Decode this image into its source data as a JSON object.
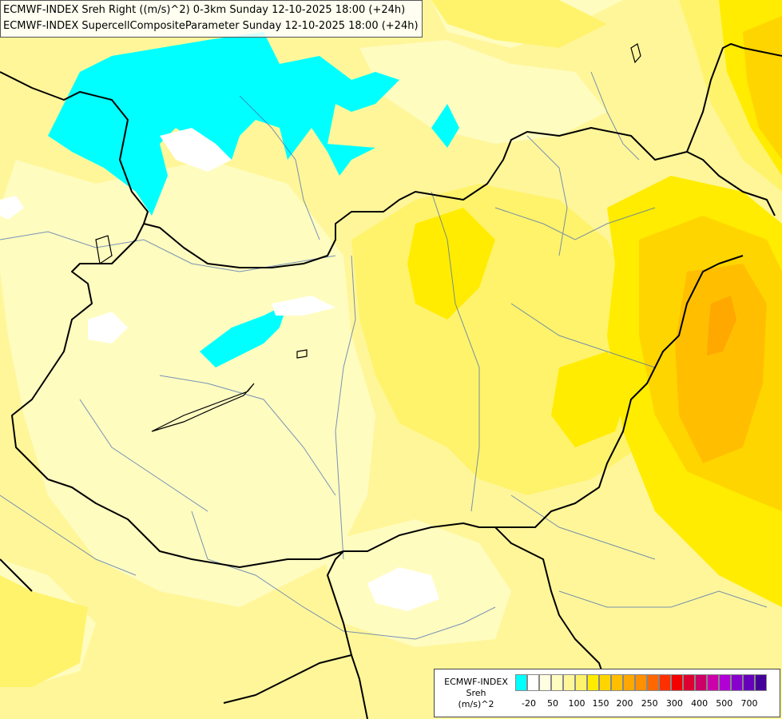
{
  "titles": {
    "line1": "ECMWF-INDEX Sreh Right ((m/s)^2) 0-3km Sunday 12-10-2025 18:00 (+24h)",
    "line2": "ECMWF-INDEX SupercellCompositeParameter Sunday 12-10-2025 18:00 (+24h)"
  },
  "legend": {
    "line1": "ECMWF-INDEX",
    "line2": "Sreh",
    "line3": "(m/s)^2",
    "colors": [
      "#00ffff",
      "#ffffff",
      "#fffee0",
      "#fffcc0",
      "#fff69a",
      "#fff36c",
      "#ffec00",
      "#ffd500",
      "#ffbf00",
      "#ffa800",
      "#ff9000",
      "#ff6800",
      "#ff3000",
      "#f50000",
      "#dd0030",
      "#cc0066",
      "#cc00aa",
      "#b000d5",
      "#8800cc",
      "#6600bb",
      "#440099",
      "#220077",
      "#000066"
    ],
    "ticks": [
      {
        "label": "-20",
        "i": 1
      },
      {
        "label": "50",
        "i": 3
      },
      {
        "label": "100",
        "i": 5
      },
      {
        "label": "150",
        "i": 7
      },
      {
        "label": "200",
        "i": 9
      },
      {
        "label": "250",
        "i": 11
      },
      {
        "label": "300",
        "i": 13
      },
      {
        "label": "400",
        "i": 15
      },
      {
        "label": "500",
        "i": 17
      },
      {
        "label": "700",
        "i": 19
      }
    ]
  }
}
